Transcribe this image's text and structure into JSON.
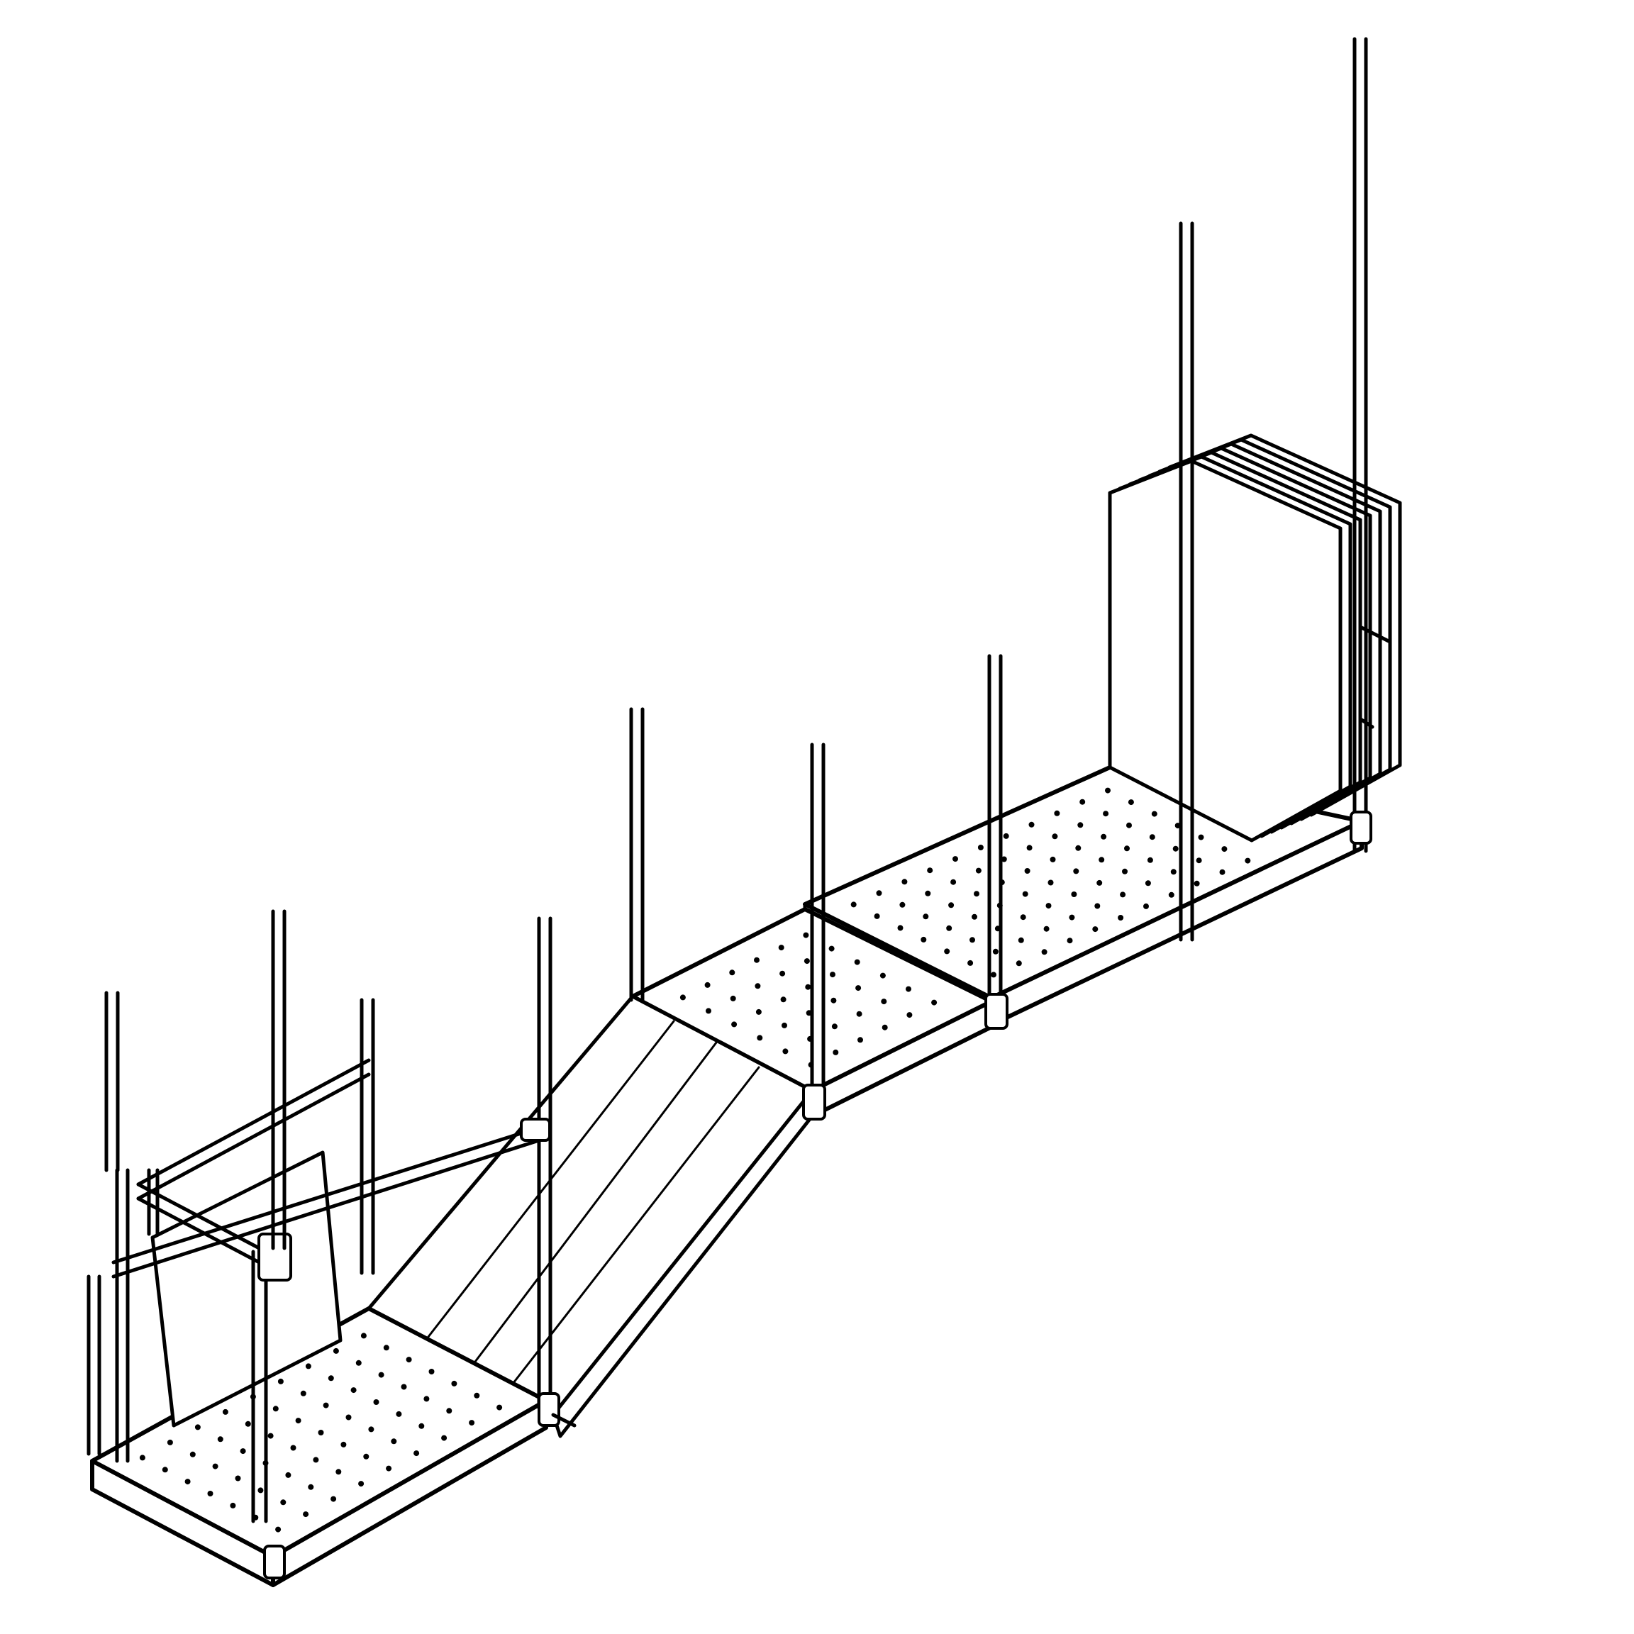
{
  "drawing": {
    "kind": "isometric scaffold walkway line drawing",
    "stroke_color": "#000000",
    "background_color": "#ffffff",
    "components": [
      "left-platform",
      "ramp",
      "middle-platform",
      "right-platform",
      "panel-stack",
      "guard-frame"
    ],
    "panel_stack_count": 7
  }
}
